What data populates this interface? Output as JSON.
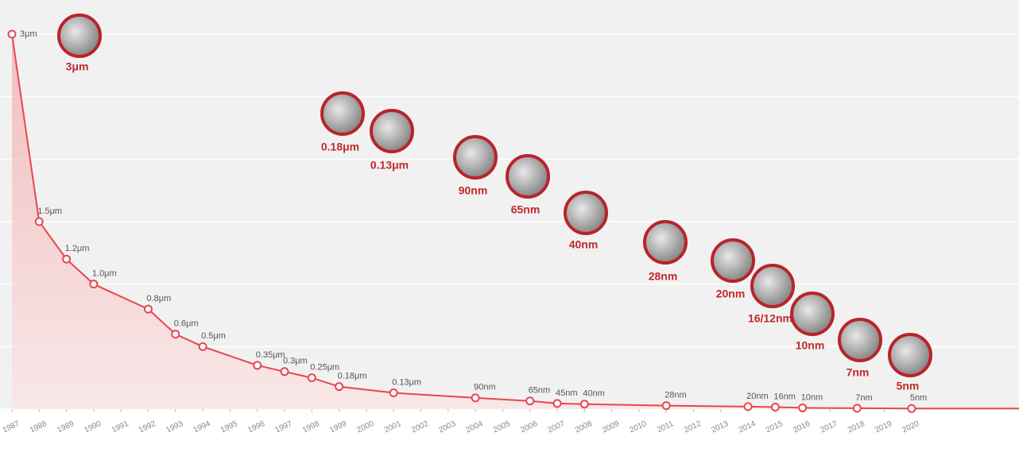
{
  "chart_data": {
    "type": "area",
    "x": [
      1987,
      1988,
      1989,
      1990,
      1992,
      1993,
      1994,
      1996,
      1997,
      1998,
      1999,
      2001,
      2004,
      2006,
      2007,
      2008,
      2011,
      2014,
      2015,
      2016,
      2018,
      2020
    ],
    "values": [
      3,
      1.5,
      1.2,
      1.0,
      0.8,
      0.6,
      0.5,
      0.35,
      0.3,
      0.25,
      0.18,
      0.13,
      0.09,
      0.065,
      0.045,
      0.04,
      0.028,
      0.02,
      0.016,
      0.01,
      0.007,
      0.005
    ],
    "value_labels": [
      "3μm",
      "1.5μm",
      "1.2μm",
      "1.0μm",
      "0.8μm",
      "0.6μm",
      "0.5μm",
      "0.35μm",
      "0.3μm",
      "0.25μm",
      "0.18μm",
      "0.13μm",
      "90nm",
      "65nm",
      "45nm",
      "40nm",
      "28nm",
      "20nm",
      "16nm",
      "10nm",
      "7nm",
      "5nm"
    ],
    "color": "#e8474c",
    "xlim": [
      1987,
      2024
    ],
    "xticks": [
      1987,
      1988,
      1989,
      1990,
      1991,
      1992,
      1993,
      1994,
      1995,
      1996,
      1997,
      1998,
      1999,
      2000,
      2001,
      2002,
      2003,
      2004,
      2005,
      2006,
      2007,
      2008,
      2009,
      2010,
      2011,
      2012,
      2013,
      2014,
      2015,
      2016,
      2017,
      2018,
      2019,
      2020
    ],
    "ylim": [
      0,
      3
    ],
    "yticks": [
      0,
      0.5,
      1,
      1.5,
      2,
      2.5,
      3
    ],
    "grid": true,
    "annotations": [
      "3μm",
      "0.18μm",
      "0.13μm",
      "90nm",
      "65nm",
      "40nm",
      "28nm",
      "20nm",
      "16/12nm",
      "10nm",
      "7nm",
      "5nm"
    ]
  }
}
